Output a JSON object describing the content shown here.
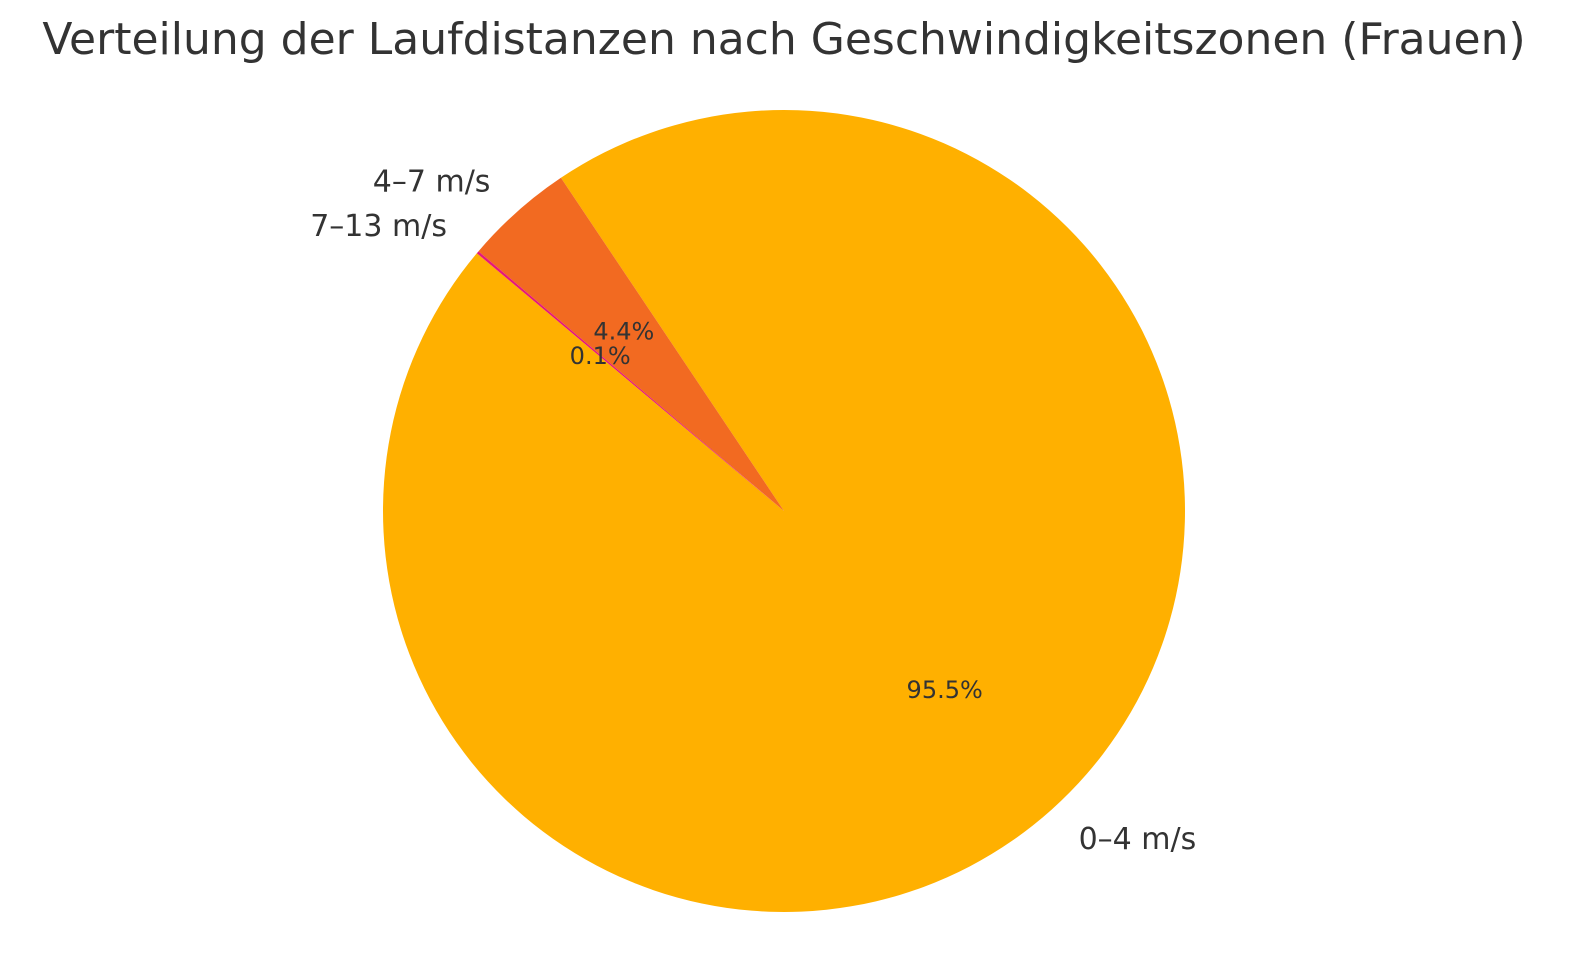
{
  "chart_data": {
    "type": "pie",
    "title": "Verteilung der Laufdistanzen nach Geschwindigkeitszonen (Frauen)",
    "slices": [
      {
        "label": "0–4 m/s",
        "value": 95.5,
        "pct_label": "95.5%",
        "color": "#FFB000"
      },
      {
        "label": "4–7 m/s",
        "value": 4.4,
        "pct_label": "4.4%",
        "color": "#F26A21"
      },
      {
        "label": "7–13 m/s",
        "value": 0.1,
        "pct_label": "0.1%",
        "color": "#E5197A"
      }
    ],
    "start_angle_deg": 140,
    "direction": "counterclockwise",
    "legend": "none"
  }
}
